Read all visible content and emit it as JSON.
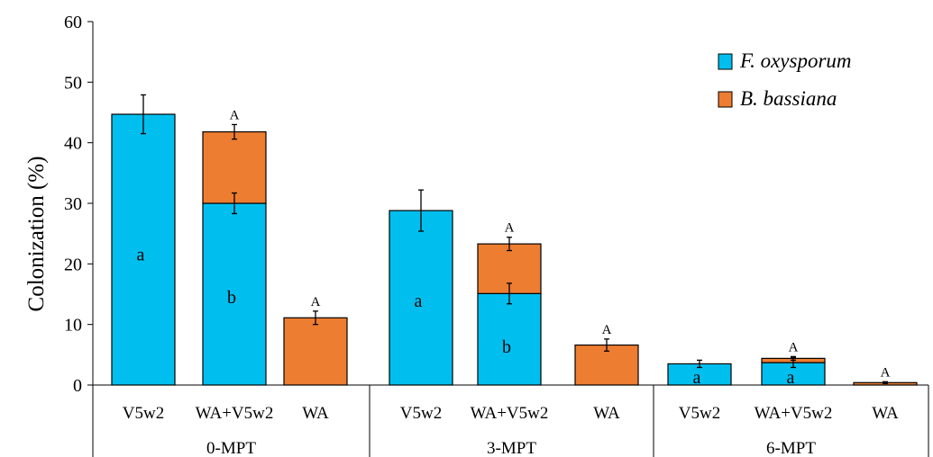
{
  "chart_data": {
    "type": "bar",
    "stacked": true,
    "ylabel": "Colonization (%)",
    "ylim": [
      0,
      60
    ],
    "yticks": [
      0,
      10,
      20,
      30,
      40,
      50,
      60
    ],
    "grid": false,
    "legend_position": "top-right",
    "groups": [
      "0-MPT",
      "3-MPT",
      "6-MPT"
    ],
    "categories": [
      "V5w2",
      "WA+V5w2",
      "WA",
      "V5w2",
      "WA+V5w2",
      "WA",
      "V5w2",
      "WA+V5w2",
      "WA"
    ],
    "series": [
      {
        "name": "F. oxysporum",
        "color": "#00bfef",
        "values": [
          44.7,
          30.0,
          0,
          28.8,
          15.1,
          0,
          3.5,
          3.7,
          0
        ],
        "errors": [
          3.2,
          1.7,
          0,
          3.4,
          1.7,
          0,
          0.6,
          0.8,
          0
        ],
        "labels": [
          "a",
          "b",
          "",
          "a",
          "b",
          "",
          "a",
          "a",
          ""
        ]
      },
      {
        "name": "B. bassiana",
        "color": "#ed7d31",
        "values": [
          0,
          11.8,
          11.1,
          0,
          8.2,
          6.6,
          0,
          0.7,
          0.4
        ],
        "errors": [
          0,
          1.2,
          1.1,
          0,
          1.1,
          1.0,
          0,
          0.3,
          0.15
        ],
        "labels": [
          "",
          "A",
          "A",
          "",
          "A",
          "A",
          "",
          "A",
          "A"
        ]
      }
    ]
  }
}
